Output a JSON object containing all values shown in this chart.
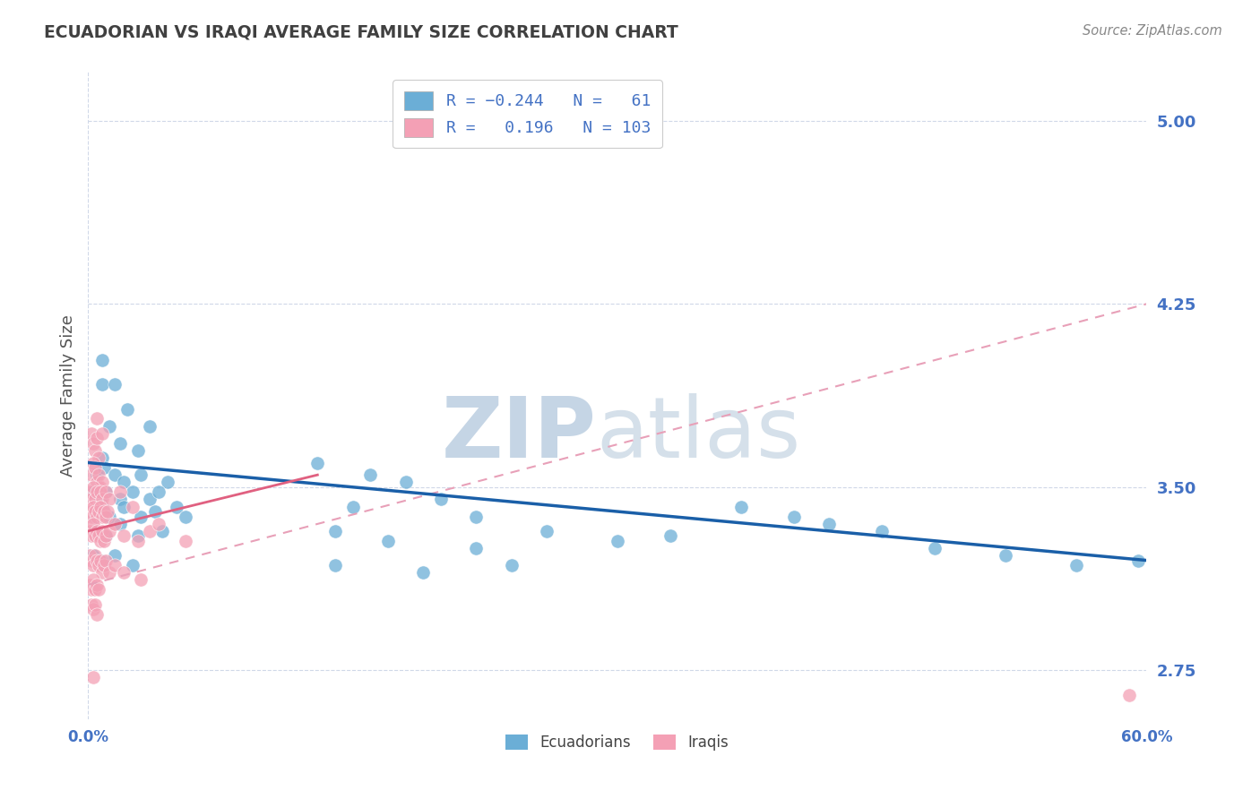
{
  "title": "ECUADORIAN VS IRAQI AVERAGE FAMILY SIZE CORRELATION CHART",
  "source": "Source: ZipAtlas.com",
  "ylabel": "Average Family Size",
  "yticks": [
    2.75,
    3.5,
    4.25,
    5.0
  ],
  "xlim": [
    0.0,
    60.0
  ],
  "ylim": [
    2.55,
    5.2
  ],
  "ecuadorian_color": "#6baed6",
  "iraqi_color": "#f4a0b5",
  "trend_ecuadorian_color": "#1a5fa8",
  "trend_iraqi_solid_color": "#e06080",
  "trend_iraqi_dashed_color": "#e8a0b8",
  "watermark_zip": "ZIP",
  "watermark_atlas": "atlas",
  "watermark_color": "#c8d8e8",
  "background_color": "#ffffff",
  "grid_color": "#d0d8e8",
  "title_color": "#404040",
  "axis_label_color": "#555555",
  "tick_color": "#4472c4",
  "ecuadorian_points": [
    [
      0.8,
      3.92
    ],
    [
      2.2,
      3.82
    ],
    [
      0.8,
      4.02
    ],
    [
      1.5,
      3.92
    ],
    [
      1.2,
      3.75
    ],
    [
      3.5,
      3.75
    ],
    [
      0.8,
      3.62
    ],
    [
      1.8,
      3.68
    ],
    [
      2.8,
      3.65
    ],
    [
      0.5,
      3.55
    ],
    [
      0.9,
      3.58
    ],
    [
      1.5,
      3.55
    ],
    [
      2.0,
      3.52
    ],
    [
      3.0,
      3.55
    ],
    [
      4.5,
      3.52
    ],
    [
      0.3,
      3.48
    ],
    [
      0.7,
      3.45
    ],
    [
      1.0,
      3.48
    ],
    [
      1.8,
      3.45
    ],
    [
      2.5,
      3.48
    ],
    [
      3.5,
      3.45
    ],
    [
      4.0,
      3.48
    ],
    [
      5.0,
      3.42
    ],
    [
      0.4,
      3.38
    ],
    [
      0.8,
      3.42
    ],
    [
      1.2,
      3.38
    ],
    [
      2.0,
      3.42
    ],
    [
      3.0,
      3.38
    ],
    [
      3.8,
      3.4
    ],
    [
      5.5,
      3.38
    ],
    [
      0.5,
      3.32
    ],
    [
      1.0,
      3.3
    ],
    [
      1.8,
      3.35
    ],
    [
      2.8,
      3.3
    ],
    [
      4.2,
      3.32
    ],
    [
      0.3,
      3.22
    ],
    [
      0.8,
      3.2
    ],
    [
      1.5,
      3.22
    ],
    [
      2.5,
      3.18
    ],
    [
      13.0,
      3.6
    ],
    [
      16.0,
      3.55
    ],
    [
      18.0,
      3.52
    ],
    [
      15.0,
      3.42
    ],
    [
      20.0,
      3.45
    ],
    [
      22.0,
      3.38
    ],
    [
      14.0,
      3.32
    ],
    [
      17.0,
      3.28
    ],
    [
      22.0,
      3.25
    ],
    [
      14.0,
      3.18
    ],
    [
      19.0,
      3.15
    ],
    [
      24.0,
      3.18
    ],
    [
      26.0,
      3.32
    ],
    [
      30.0,
      3.28
    ],
    [
      33.0,
      3.3
    ],
    [
      37.0,
      3.42
    ],
    [
      40.0,
      3.38
    ],
    [
      42.0,
      3.35
    ],
    [
      45.0,
      3.32
    ],
    [
      48.0,
      3.25
    ],
    [
      52.0,
      3.22
    ],
    [
      56.0,
      3.18
    ],
    [
      59.5,
      3.2
    ]
  ],
  "iraqi_points": [
    [
      0.2,
      3.72
    ],
    [
      0.3,
      3.68
    ],
    [
      0.4,
      3.65
    ],
    [
      0.5,
      3.7
    ],
    [
      0.6,
      3.62
    ],
    [
      0.2,
      3.55
    ],
    [
      0.3,
      3.6
    ],
    [
      0.4,
      3.58
    ],
    [
      0.5,
      3.52
    ],
    [
      0.6,
      3.55
    ],
    [
      0.7,
      3.5
    ],
    [
      0.8,
      3.52
    ],
    [
      0.1,
      3.48
    ],
    [
      0.2,
      3.45
    ],
    [
      0.3,
      3.5
    ],
    [
      0.4,
      3.45
    ],
    [
      0.5,
      3.48
    ],
    [
      0.6,
      3.42
    ],
    [
      0.7,
      3.48
    ],
    [
      0.8,
      3.45
    ],
    [
      1.0,
      3.48
    ],
    [
      1.2,
      3.45
    ],
    [
      0.1,
      3.4
    ],
    [
      0.2,
      3.38
    ],
    [
      0.3,
      3.42
    ],
    [
      0.4,
      3.4
    ],
    [
      0.5,
      3.38
    ],
    [
      0.6,
      3.4
    ],
    [
      0.7,
      3.42
    ],
    [
      0.8,
      3.38
    ],
    [
      0.9,
      3.4
    ],
    [
      1.0,
      3.38
    ],
    [
      1.1,
      3.4
    ],
    [
      0.1,
      3.32
    ],
    [
      0.2,
      3.3
    ],
    [
      0.3,
      3.35
    ],
    [
      0.4,
      3.3
    ],
    [
      0.5,
      3.32
    ],
    [
      0.6,
      3.3
    ],
    [
      0.7,
      3.28
    ],
    [
      0.8,
      3.32
    ],
    [
      0.9,
      3.28
    ],
    [
      1.0,
      3.3
    ],
    [
      1.2,
      3.32
    ],
    [
      0.1,
      3.22
    ],
    [
      0.2,
      3.2
    ],
    [
      0.3,
      3.18
    ],
    [
      0.4,
      3.22
    ],
    [
      0.5,
      3.2
    ],
    [
      0.6,
      3.18
    ],
    [
      0.7,
      3.2
    ],
    [
      0.8,
      3.15
    ],
    [
      0.9,
      3.18
    ],
    [
      1.0,
      3.2
    ],
    [
      1.2,
      3.15
    ],
    [
      0.1,
      3.1
    ],
    [
      0.2,
      3.08
    ],
    [
      0.3,
      3.12
    ],
    [
      0.4,
      3.08
    ],
    [
      0.5,
      3.1
    ],
    [
      0.6,
      3.08
    ],
    [
      0.2,
      3.02
    ],
    [
      0.3,
      3.0
    ],
    [
      0.4,
      3.02
    ],
    [
      0.5,
      2.98
    ],
    [
      1.5,
      3.35
    ],
    [
      2.0,
      3.3
    ],
    [
      2.8,
      3.28
    ],
    [
      3.5,
      3.32
    ],
    [
      1.5,
      3.18
    ],
    [
      2.0,
      3.15
    ],
    [
      3.0,
      3.12
    ],
    [
      1.8,
      3.48
    ],
    [
      2.5,
      3.42
    ],
    [
      4.0,
      3.35
    ],
    [
      5.5,
      3.28
    ],
    [
      0.5,
      3.78
    ],
    [
      0.8,
      3.72
    ],
    [
      0.3,
      2.72
    ],
    [
      59.0,
      2.65
    ]
  ]
}
